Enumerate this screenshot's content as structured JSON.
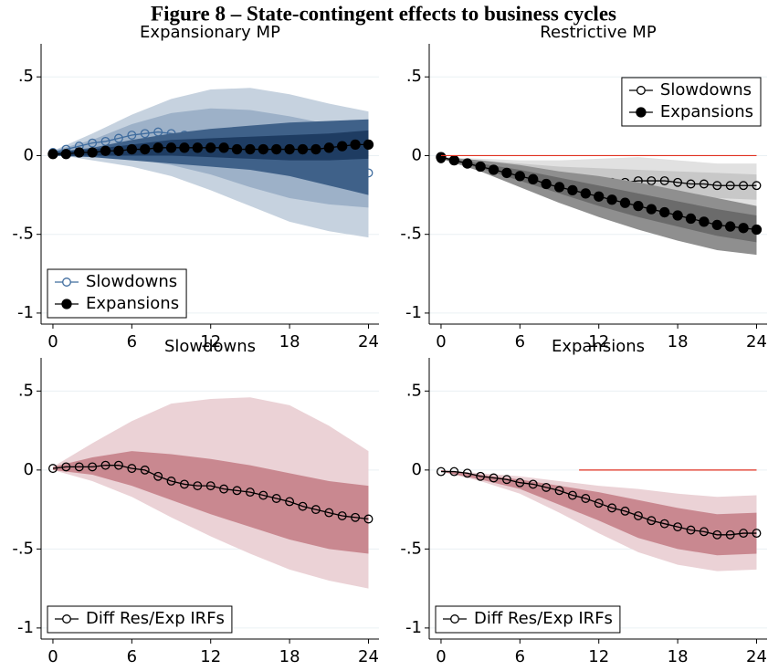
{
  "title": "Figure 8 – State-contingent effects to business cycles",
  "chart_data": [
    {
      "type": "line",
      "title": "Expansionary MP",
      "x": [
        0,
        1,
        2,
        3,
        4,
        5,
        6,
        7,
        8,
        9,
        10,
        11,
        12,
        13,
        14,
        15,
        16,
        17,
        18,
        19,
        20,
        21,
        22,
        23,
        24
      ],
      "xlim": [
        -0.9,
        24.8
      ],
      "ylim": [
        -1.07,
        0.71
      ],
      "xticks": [
        0,
        6,
        12,
        18,
        24
      ],
      "yticks": [
        {
          "value": 0.5,
          "label": ".5"
        },
        0,
        {
          "value": -0.5,
          "label": "-.5"
        },
        -1
      ],
      "grid": true,
      "legend": "bottom-left",
      "series": [
        {
          "name": "Slowdowns",
          "color": "#3f6c9e",
          "marker": "hollow",
          "values": [
            0.02,
            0.04,
            0.06,
            0.08,
            0.09,
            0.11,
            0.13,
            0.14,
            0.15,
            0.14,
            0.13,
            0.12,
            0.11,
            0.1,
            0.08,
            0.06,
            0.04,
            0.02,
            0.0,
            -0.02,
            -0.04,
            -0.06,
            -0.08,
            -0.11,
            -0.11
          ],
          "bands": [
            {
              "color": "#c6d2df",
              "x": [
                0,
                3,
                6,
                9,
                12,
                15,
                18,
                21,
                24
              ],
              "upper": [
                0.03,
                0.14,
                0.26,
                0.36,
                0.42,
                0.43,
                0.39,
                0.33,
                0.28
              ],
              "lower": [
                0.01,
                -0.03,
                -0.07,
                -0.13,
                -0.22,
                -0.32,
                -0.42,
                -0.48,
                -0.52
              ]
            },
            {
              "color": "#9db1c8",
              "x": [
                0,
                3,
                6,
                9,
                12,
                15,
                18,
                21,
                24
              ],
              "upper": [
                0.03,
                0.1,
                0.2,
                0.27,
                0.3,
                0.29,
                0.25,
                0.2,
                0.16
              ],
              "lower": [
                0.01,
                0.0,
                -0.02,
                -0.06,
                -0.12,
                -0.2,
                -0.27,
                -0.31,
                -0.33
              ]
            }
          ]
        },
        {
          "name": "Expansions",
          "color": "#000000",
          "marker": "filled",
          "values": [
            0.01,
            0.01,
            0.02,
            0.02,
            0.03,
            0.03,
            0.04,
            0.04,
            0.05,
            0.05,
            0.05,
            0.05,
            0.05,
            0.05,
            0.04,
            0.04,
            0.04,
            0.04,
            0.04,
            0.04,
            0.04,
            0.05,
            0.06,
            0.07,
            0.07
          ],
          "bands": [
            {
              "color": "#3f6189",
              "x": [
                0,
                3,
                6,
                9,
                12,
                15,
                18,
                21,
                24
              ],
              "upper": [
                0.02,
                0.05,
                0.1,
                0.14,
                0.17,
                0.19,
                0.21,
                0.22,
                0.23
              ],
              "lower": [
                0.0,
                -0.01,
                -0.03,
                -0.05,
                -0.07,
                -0.09,
                -0.13,
                -0.19,
                -0.25
              ]
            },
            {
              "color": "#1e3c62",
              "x": [
                0,
                3,
                6,
                9,
                12,
                15,
                18,
                21,
                24
              ],
              "upper": [
                0.02,
                0.04,
                0.07,
                0.1,
                0.11,
                0.12,
                0.13,
                0.14,
                0.16
              ],
              "lower": [
                0.0,
                0.0,
                0.0,
                0.0,
                -0.01,
                -0.02,
                -0.03,
                -0.03,
                -0.02
              ]
            }
          ]
        }
      ]
    },
    {
      "type": "line",
      "title": "Restrictive MP",
      "x": [
        0,
        1,
        2,
        3,
        4,
        5,
        6,
        7,
        8,
        9,
        10,
        11,
        12,
        13,
        14,
        15,
        16,
        17,
        18,
        19,
        20,
        21,
        22,
        23,
        24
      ],
      "xlim": [
        -0.9,
        24.8
      ],
      "ylim": [
        -1.07,
        0.71
      ],
      "xticks": [
        0,
        6,
        12,
        18,
        24
      ],
      "yticks": [
        {
          "value": 0.5,
          "label": ".5"
        },
        0,
        {
          "value": -0.5,
          "label": "-.5"
        },
        -1
      ],
      "grid": true,
      "legend": "top-right",
      "refline": {
        "y": 0,
        "x": [
          0,
          24
        ],
        "color": "#e03020"
      },
      "series": [
        {
          "name": "Slowdowns",
          "color": "#000000",
          "marker": "hollow",
          "values": [
            -0.02,
            -0.03,
            -0.05,
            -0.07,
            -0.09,
            -0.11,
            -0.12,
            -0.14,
            -0.15,
            -0.16,
            -0.17,
            -0.17,
            -0.17,
            -0.17,
            -0.17,
            -0.16,
            -0.16,
            -0.16,
            -0.17,
            -0.18,
            -0.18,
            -0.19,
            -0.19,
            -0.19,
            -0.19
          ],
          "bands": [
            {
              "color": "#e1e1e1",
              "x": [
                0,
                3,
                6,
                9,
                12,
                15,
                18,
                21,
                24
              ],
              "upper": [
                -0.01,
                -0.02,
                -0.03,
                -0.03,
                -0.02,
                -0.01,
                -0.03,
                -0.05,
                -0.05
              ],
              "lower": [
                -0.02,
                -0.09,
                -0.2,
                -0.3,
                -0.35,
                -0.35,
                -0.35,
                -0.36,
                -0.37
              ]
            },
            {
              "color": "#c8c8c8",
              "x": [
                0,
                3,
                6,
                9,
                12,
                15,
                18,
                21,
                24
              ],
              "upper": [
                -0.01,
                -0.03,
                -0.05,
                -0.07,
                -0.08,
                -0.09,
                -0.1,
                -0.11,
                -0.12
              ],
              "lower": [
                -0.02,
                -0.08,
                -0.15,
                -0.22,
                -0.26,
                -0.26,
                -0.26,
                -0.27,
                -0.28
              ]
            }
          ]
        },
        {
          "name": "Expansions",
          "color": "#000000",
          "marker": "filled",
          "values": [
            -0.01,
            -0.03,
            -0.05,
            -0.07,
            -0.09,
            -0.11,
            -0.13,
            -0.15,
            -0.18,
            -0.2,
            -0.22,
            -0.24,
            -0.26,
            -0.28,
            -0.3,
            -0.32,
            -0.34,
            -0.36,
            -0.38,
            -0.4,
            -0.42,
            -0.44,
            -0.45,
            -0.46,
            -0.47
          ],
          "bands": [
            {
              "color": "#8f8f8f",
              "x": [
                0,
                3,
                6,
                9,
                12,
                15,
                18,
                21,
                24
              ],
              "upper": [
                -0.01,
                -0.03,
                -0.06,
                -0.1,
                -0.13,
                -0.17,
                -0.22,
                -0.27,
                -0.32
              ],
              "lower": [
                -0.02,
                -0.1,
                -0.2,
                -0.3,
                -0.39,
                -0.47,
                -0.54,
                -0.6,
                -0.63
              ]
            },
            {
              "color": "#6b6b6b",
              "x": [
                0,
                3,
                6,
                9,
                12,
                15,
                18,
                21,
                24
              ],
              "upper": [
                -0.01,
                -0.05,
                -0.09,
                -0.14,
                -0.19,
                -0.24,
                -0.29,
                -0.34,
                -0.38
              ],
              "lower": [
                -0.02,
                -0.08,
                -0.16,
                -0.24,
                -0.32,
                -0.39,
                -0.45,
                -0.51,
                -0.55
              ]
            }
          ]
        }
      ]
    },
    {
      "type": "line",
      "title": "Slowdowns",
      "x": [
        0,
        1,
        2,
        3,
        4,
        5,
        6,
        7,
        8,
        9,
        10,
        11,
        12,
        13,
        14,
        15,
        16,
        17,
        18,
        19,
        20,
        21,
        22,
        23,
        24
      ],
      "xlim": [
        -0.9,
        24.8
      ],
      "ylim": [
        -1.07,
        0.71
      ],
      "xticks": [
        0,
        6,
        12,
        18,
        24
      ],
      "yticks": [
        {
          "value": 0.5,
          "label": ".5"
        },
        0,
        {
          "value": -0.5,
          "label": "-.5"
        },
        -1
      ],
      "grid": true,
      "legend": "bottom-left",
      "series": [
        {
          "name": "Diff Res/Exp IRFs",
          "color": "#000000",
          "marker": "hollow",
          "values": [
            0.01,
            0.02,
            0.02,
            0.02,
            0.03,
            0.03,
            0.01,
            0.0,
            -0.04,
            -0.07,
            -0.09,
            -0.1,
            -0.1,
            -0.12,
            -0.13,
            -0.14,
            -0.16,
            -0.18,
            -0.2,
            -0.23,
            -0.25,
            -0.27,
            -0.29,
            -0.3,
            -0.31
          ],
          "bands": [
            {
              "color": "#ebd2d6",
              "x": [
                0,
                3,
                6,
                9,
                12,
                15,
                18,
                21,
                24
              ],
              "upper": [
                0.02,
                0.17,
                0.31,
                0.42,
                0.45,
                0.46,
                0.41,
                0.28,
                0.12
              ],
              "lower": [
                0.0,
                -0.07,
                -0.17,
                -0.3,
                -0.42,
                -0.53,
                -0.63,
                -0.7,
                -0.75
              ]
            },
            {
              "color": "#c98890",
              "x": [
                0,
                3,
                6,
                9,
                12,
                15,
                18,
                21,
                24
              ],
              "upper": [
                0.02,
                0.08,
                0.12,
                0.1,
                0.07,
                0.03,
                -0.02,
                -0.07,
                -0.1
              ],
              "lower": [
                0.0,
                -0.03,
                -0.1,
                -0.19,
                -0.28,
                -0.36,
                -0.44,
                -0.5,
                -0.53
              ]
            }
          ]
        }
      ]
    },
    {
      "type": "line",
      "title": "Expansions",
      "x": [
        0,
        1,
        2,
        3,
        4,
        5,
        6,
        7,
        8,
        9,
        10,
        11,
        12,
        13,
        14,
        15,
        16,
        17,
        18,
        19,
        20,
        21,
        22,
        23,
        24
      ],
      "xlim": [
        -0.9,
        24.8
      ],
      "ylim": [
        -1.07,
        0.71
      ],
      "xticks": [
        0,
        6,
        12,
        18,
        24
      ],
      "yticks": [
        {
          "value": 0.5,
          "label": ".5"
        },
        0,
        {
          "value": -0.5,
          "label": "-.5"
        },
        -1
      ],
      "grid": true,
      "legend": "bottom-left",
      "refline": {
        "y": 0,
        "x": [
          10.5,
          24
        ],
        "color": "#e03020"
      },
      "series": [
        {
          "name": "Diff Res/Exp IRFs",
          "color": "#000000",
          "marker": "hollow",
          "values": [
            -0.01,
            -0.01,
            -0.02,
            -0.04,
            -0.05,
            -0.06,
            -0.08,
            -0.09,
            -0.11,
            -0.13,
            -0.16,
            -0.18,
            -0.21,
            -0.24,
            -0.26,
            -0.29,
            -0.32,
            -0.34,
            -0.36,
            -0.38,
            -0.39,
            -0.41,
            -0.41,
            -0.4,
            -0.4
          ],
          "bands": [
            {
              "color": "#ebd2d6",
              "x": [
                0,
                3,
                6,
                9,
                12,
                15,
                18,
                21,
                24
              ],
              "upper": [
                0.0,
                -0.02,
                -0.04,
                -0.07,
                -0.1,
                -0.12,
                -0.15,
                -0.17,
                -0.16
              ],
              "lower": [
                -0.01,
                -0.07,
                -0.15,
                -0.27,
                -0.4,
                -0.52,
                -0.6,
                -0.64,
                -0.63
              ]
            },
            {
              "color": "#c98890",
              "x": [
                0,
                3,
                6,
                9,
                12,
                15,
                18,
                21,
                24
              ],
              "upper": [
                0.0,
                -0.03,
                -0.06,
                -0.1,
                -0.14,
                -0.19,
                -0.24,
                -0.28,
                -0.27
              ],
              "lower": [
                -0.01,
                -0.06,
                -0.12,
                -0.22,
                -0.32,
                -0.43,
                -0.5,
                -0.54,
                -0.53
              ]
            }
          ]
        }
      ]
    }
  ]
}
